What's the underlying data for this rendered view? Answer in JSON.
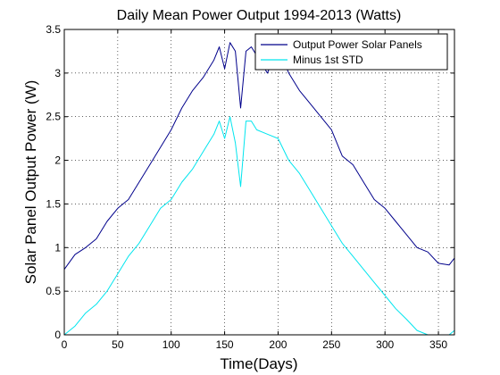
{
  "chart_data": {
    "type": "line",
    "title": "Daily Mean Power Output 1994-2013 (Watts)",
    "xlabel": "Time(Days)",
    "ylabel": "Solar Panel Output Power (W)",
    "xlim": [
      0,
      365
    ],
    "ylim": [
      0,
      3.5
    ],
    "xticks": [
      0,
      50,
      100,
      150,
      200,
      250,
      300,
      350
    ],
    "yticks": [
      0,
      0.5,
      1,
      1.5,
      2,
      2.5,
      3,
      3.5
    ],
    "xtick_labels": [
      "0",
      "50",
      "100",
      "150",
      "200",
      "250",
      "300",
      "350"
    ],
    "ytick_labels": [
      "0",
      "0.5",
      "1",
      "1.5",
      "2",
      "2.5",
      "3",
      "3.5"
    ],
    "grid": true,
    "legend": {
      "placement": "top-right"
    },
    "series": [
      {
        "name": "Output Power Solar Panels",
        "color": "#00008b",
        "x": [
          0,
          10,
          20,
          30,
          40,
          50,
          60,
          70,
          80,
          90,
          100,
          110,
          120,
          130,
          140,
          145,
          150,
          155,
          160,
          165,
          170,
          175,
          180,
          190,
          200,
          210,
          220,
          230,
          240,
          250,
          260,
          270,
          280,
          290,
          300,
          310,
          320,
          330,
          340,
          350,
          360,
          365
        ],
        "y": [
          0.75,
          0.92,
          1.0,
          1.1,
          1.3,
          1.45,
          1.55,
          1.75,
          1.95,
          2.15,
          2.35,
          2.6,
          2.8,
          2.95,
          3.15,
          3.3,
          3.05,
          3.35,
          3.25,
          2.6,
          3.25,
          3.3,
          3.2,
          3.0,
          3.3,
          3.0,
          2.8,
          2.65,
          2.5,
          2.35,
          2.05,
          1.95,
          1.75,
          1.55,
          1.45,
          1.3,
          1.15,
          1.0,
          0.95,
          0.82,
          0.8,
          0.88
        ]
      },
      {
        "name": "Minus 1st STD",
        "color": "#00e5ee",
        "x": [
          0,
          10,
          20,
          30,
          40,
          50,
          60,
          70,
          80,
          90,
          100,
          110,
          120,
          130,
          140,
          145,
          150,
          155,
          160,
          165,
          170,
          175,
          180,
          190,
          200,
          210,
          220,
          230,
          240,
          250,
          260,
          270,
          280,
          290,
          300,
          310,
          320,
          330,
          340,
          350,
          360,
          365
        ],
        "y": [
          0.0,
          0.1,
          0.25,
          0.35,
          0.5,
          0.7,
          0.9,
          1.05,
          1.25,
          1.45,
          1.55,
          1.75,
          1.9,
          2.1,
          2.3,
          2.45,
          2.25,
          2.5,
          2.2,
          1.7,
          2.45,
          2.45,
          2.35,
          2.3,
          2.25,
          2.0,
          1.85,
          1.65,
          1.45,
          1.25,
          1.05,
          0.9,
          0.75,
          0.6,
          0.45,
          0.3,
          0.18,
          0.05,
          0.0,
          0.0,
          0.0,
          0.05
        ]
      }
    ]
  }
}
